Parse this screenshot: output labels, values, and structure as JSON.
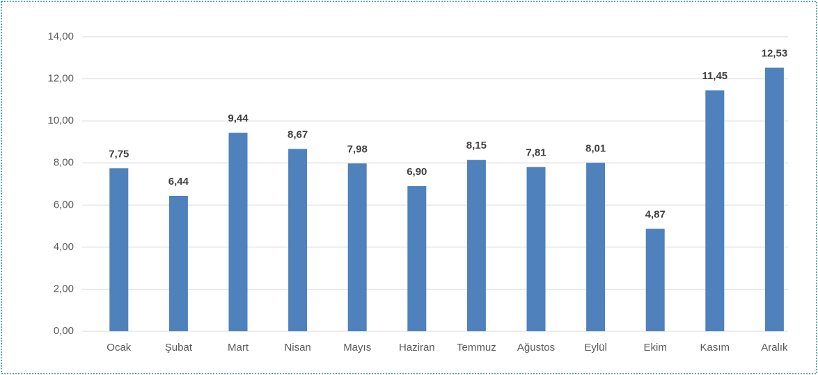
{
  "chart_data": {
    "type": "bar",
    "categories": [
      "Ocak",
      "Şubat",
      "Mart",
      "Nisan",
      "Mayıs",
      "Haziran",
      "Temmuz",
      "Ağustos",
      "Eylül",
      "Ekim",
      "Kasım",
      "Aralık"
    ],
    "values": [
      7.75,
      6.44,
      9.44,
      8.67,
      7.98,
      6.9,
      8.15,
      7.81,
      8.01,
      4.87,
      11.45,
      12.53
    ],
    "value_labels": [
      "7,75",
      "6,44",
      "9,44",
      "8,67",
      "7,98",
      "6,90",
      "8,15",
      "7,81",
      "8,01",
      "4,87",
      "11,45",
      "12,53"
    ],
    "color": "#4f81bd",
    "ylim": [
      0,
      14
    ],
    "yticks": [
      {
        "value": 0,
        "label": "0,00"
      },
      {
        "value": 2,
        "label": "2,00"
      },
      {
        "value": 4,
        "label": "4,00"
      },
      {
        "value": 6,
        "label": "6,00"
      },
      {
        "value": 8,
        "label": "8,00"
      },
      {
        "value": 10,
        "label": "10,00"
      },
      {
        "value": 12,
        "label": "12,00"
      },
      {
        "value": 14,
        "label": "14,00"
      }
    ],
    "grid": true
  }
}
